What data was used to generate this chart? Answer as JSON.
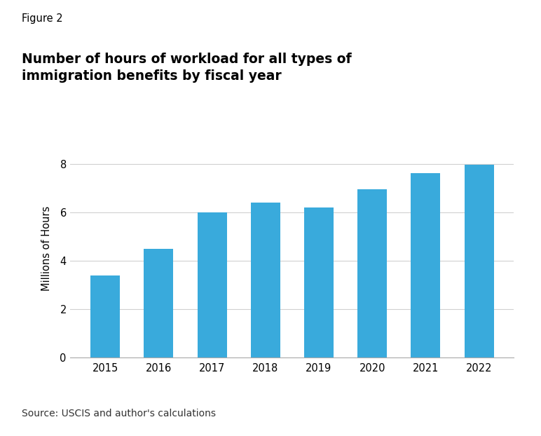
{
  "figure_label": "Figure 2",
  "title_line1": "Number of hours of workload for all types of",
  "title_line2": "immigration benefits by fiscal year",
  "years": [
    "2015",
    "2016",
    "2017",
    "2018",
    "2019",
    "2020",
    "2021",
    "2022"
  ],
  "values": [
    3.4,
    4.5,
    6.0,
    6.4,
    6.2,
    6.95,
    7.6,
    7.95
  ],
  "bar_color": "#39AADC",
  "ylabel": "Millions of Hours",
  "ylim": [
    0,
    9
  ],
  "yticks": [
    0,
    2,
    4,
    6,
    8
  ],
  "source_text": "Source: USCIS and author's calculations",
  "background_color": "#ffffff",
  "grid_color": "#d0d0d0",
  "bar_width": 0.55
}
